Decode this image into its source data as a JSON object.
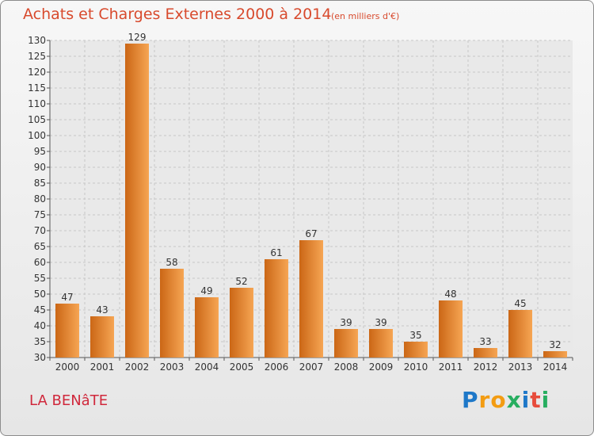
{
  "header": {
    "title": "Achats et Charges Externes 2000 à 2014",
    "unit_note": "(en milliers d'€)"
  },
  "footer": {
    "place": "LA BENâTE",
    "logo_letters": [
      "P",
      "r",
      "o",
      "x",
      "i",
      "t",
      "i"
    ],
    "logo_colors": [
      "#1e78c8",
      "#f39c12",
      "#f39c12",
      "#27ae60",
      "#1e78c8",
      "#e74c3c",
      "#27ae60"
    ]
  },
  "colors": {
    "bar_light": "#f6a553",
    "bar_dark": "#cb6716",
    "title": "#d84a2d",
    "grid": "#c8c8c8"
  },
  "chart_data": {
    "type": "bar",
    "title": "Achats et Charges Externes 2000 à 2014",
    "subtitle": "(en milliers d'€)",
    "xlabel": "",
    "ylabel": "",
    "categories": [
      "2000",
      "2001",
      "2002",
      "2003",
      "2004",
      "2005",
      "2006",
      "2007",
      "2008",
      "2009",
      "2010",
      "2011",
      "2012",
      "2013",
      "2014"
    ],
    "values": [
      47,
      43,
      129,
      58,
      49,
      52,
      61,
      67,
      39,
      39,
      35,
      48,
      33,
      45,
      32
    ],
    "ylim": [
      30,
      130
    ],
    "yticks": [
      30,
      35,
      40,
      45,
      50,
      55,
      60,
      65,
      70,
      75,
      80,
      85,
      90,
      95,
      100,
      105,
      110,
      115,
      120,
      125,
      130
    ],
    "grid": true,
    "data_labels": true
  }
}
